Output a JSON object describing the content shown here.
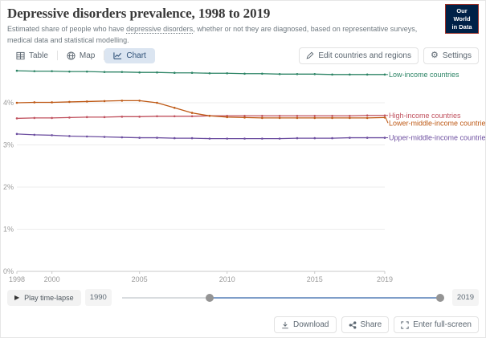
{
  "header": {
    "title": "Depressive disorders prevalence, 1998 to 2019",
    "subtitle_prefix": "Estimated share of people who have ",
    "subtitle_link": "depressive disorders",
    "subtitle_suffix": ", whether or not they are diagnosed, based on representative surveys, medical data and statistical modelling.",
    "logo_line1": "Our World",
    "logo_line2": "in Data",
    "logo_bg": "#002147"
  },
  "tabs": [
    {
      "label": "Table",
      "active": false
    },
    {
      "label": "Map",
      "active": false
    },
    {
      "label": "Chart",
      "active": true
    }
  ],
  "toolbar": {
    "edit_label": "Edit countries and regions",
    "settings_label": "Settings",
    "active_tab_bg": "#dbe5f1"
  },
  "chart_data": {
    "type": "line",
    "title": "Depressive disorders prevalence, 1998 to 2019",
    "xlabel": "",
    "ylabel": "",
    "x": [
      1998,
      1999,
      2000,
      2001,
      2002,
      2003,
      2004,
      2005,
      2006,
      2007,
      2008,
      2009,
      2010,
      2011,
      2012,
      2013,
      2014,
      2015,
      2016,
      2017,
      2018,
      2019
    ],
    "xticks": [
      1998,
      2000,
      2005,
      2010,
      2015,
      2019
    ],
    "ylim": [
      0,
      4.9
    ],
    "ytick_values": [
      0,
      1,
      2,
      3,
      4
    ],
    "ytick_labels": [
      "0%",
      "1%",
      "2%",
      "3%",
      "4%"
    ],
    "grid": true,
    "legend_position": "right-end-labels",
    "series": [
      {
        "name": "Low-income countries",
        "color": "#2c8465",
        "values": [
          4.76,
          4.75,
          4.75,
          4.74,
          4.74,
          4.73,
          4.73,
          4.72,
          4.72,
          4.71,
          4.71,
          4.7,
          4.7,
          4.69,
          4.69,
          4.68,
          4.68,
          4.68,
          4.67,
          4.67,
          4.67,
          4.67
        ]
      },
      {
        "name": "High-income countries",
        "color": "#c0515e",
        "values": [
          3.63,
          3.64,
          3.64,
          3.65,
          3.66,
          3.66,
          3.67,
          3.67,
          3.68,
          3.68,
          3.68,
          3.69,
          3.69,
          3.69,
          3.69,
          3.69,
          3.69,
          3.69,
          3.69,
          3.69,
          3.7,
          3.7
        ]
      },
      {
        "name": "Lower-middle-income countries",
        "color": "#be5915",
        "values": [
          4.0,
          4.01,
          4.01,
          4.02,
          4.03,
          4.04,
          4.05,
          4.05,
          4.0,
          3.88,
          3.76,
          3.69,
          3.66,
          3.65,
          3.64,
          3.64,
          3.64,
          3.64,
          3.64,
          3.64,
          3.64,
          3.65
        ]
      },
      {
        "name": "Upper-middle-income countries",
        "color": "#6d4fa0",
        "values": [
          3.26,
          3.24,
          3.23,
          3.21,
          3.2,
          3.19,
          3.18,
          3.17,
          3.17,
          3.16,
          3.16,
          3.15,
          3.15,
          3.15,
          3.15,
          3.15,
          3.16,
          3.16,
          3.16,
          3.17,
          3.17,
          3.17
        ]
      }
    ]
  },
  "timeline": {
    "play_label": "Play time-lapse",
    "range_start_label": "1990",
    "range_end_label": "2019",
    "selected_start_year": 1998,
    "selected_end_year": 2019,
    "active_track_color": "#7f9ec9"
  },
  "footer": {
    "download_label": "Download",
    "share_label": "Share",
    "fullscreen_label": "Enter full-screen"
  }
}
